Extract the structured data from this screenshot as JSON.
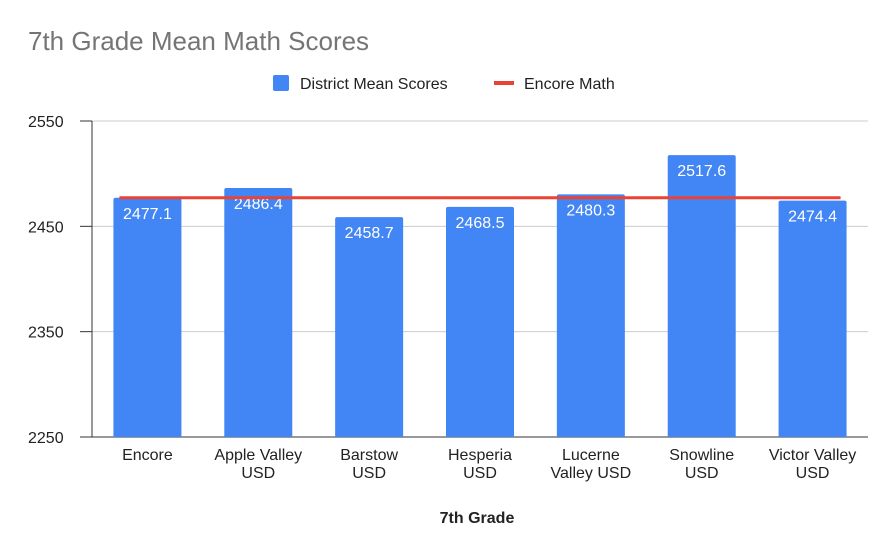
{
  "chart_data": {
    "type": "bar",
    "title": "7th Grade Mean Math Scores",
    "xlabel": "7th Grade",
    "ylabel": "",
    "ylim": [
      2250,
      2550
    ],
    "yticks": [
      "2550",
      "2450",
      "2350",
      "2250"
    ],
    "ytick_values": [
      2550,
      2450,
      2350,
      2250
    ],
    "grid": true,
    "legend_position": "top",
    "categories": [
      [
        "Encore"
      ],
      [
        "Apple Valley",
        "USD"
      ],
      [
        "Barstow",
        "USD"
      ],
      [
        "Hesperia",
        "USD"
      ],
      [
        "Lucerne",
        "Valley USD"
      ],
      [
        "Snowline",
        "USD"
      ],
      [
        "Victor Valley",
        "USD"
      ]
    ],
    "series": [
      {
        "name": "District Mean Scores",
        "type": "bar",
        "color": "#4285f4",
        "values": [
          2477.1,
          2486.4,
          2458.7,
          2468.5,
          2480.3,
          2517.6,
          2474.4
        ],
        "labels": [
          "2477.1",
          "2486.4",
          "2458.7",
          "2468.5",
          "2480.3",
          "2517.6",
          "2474.4"
        ]
      },
      {
        "name": "Encore Math",
        "type": "line",
        "color": "#ea4335",
        "value": 2477.1
      }
    ]
  }
}
